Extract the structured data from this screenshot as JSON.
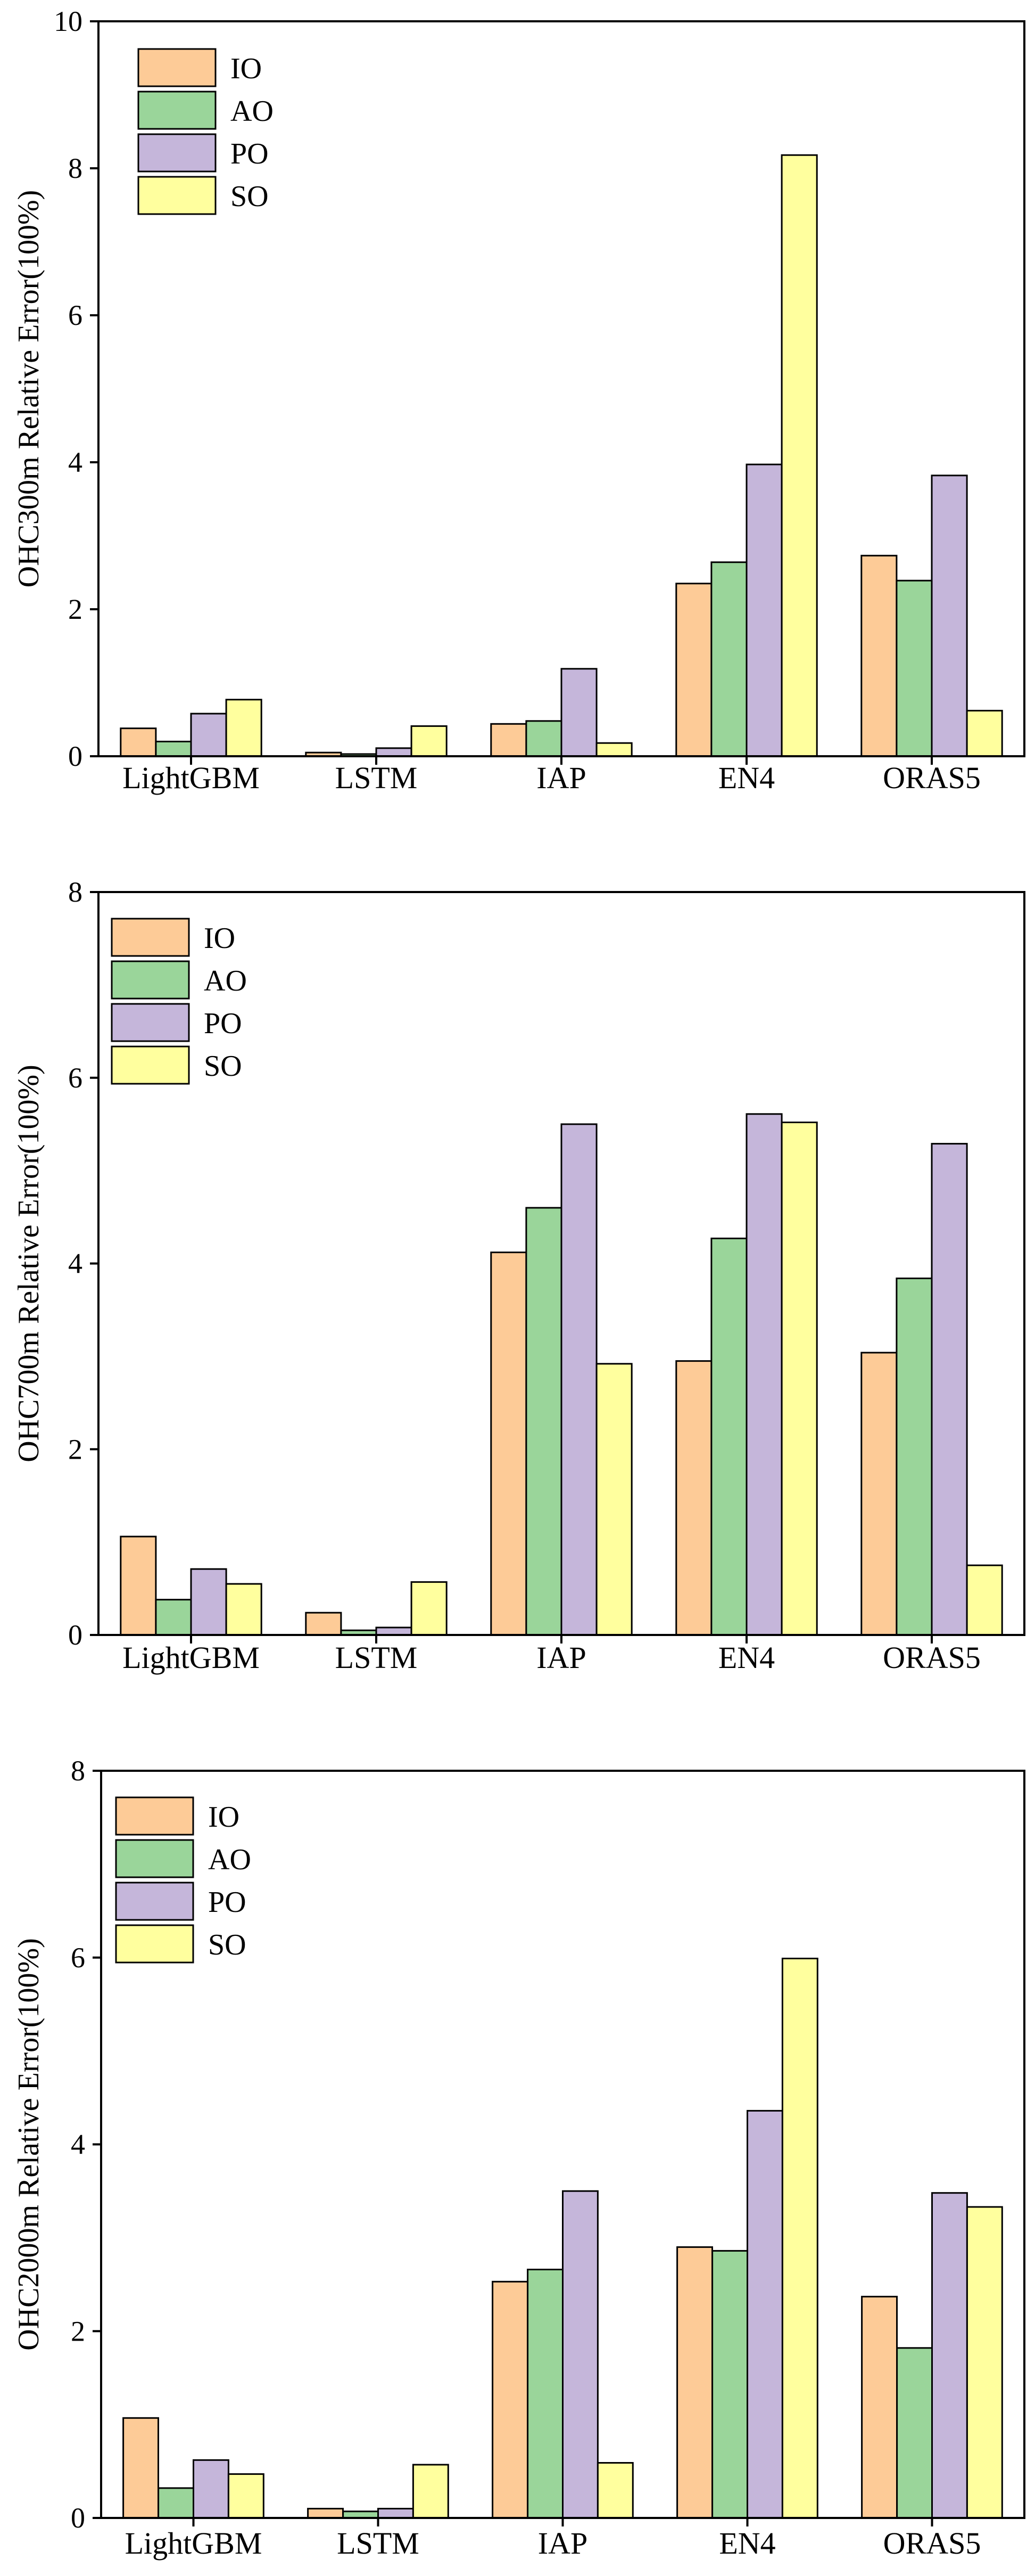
{
  "colors": {
    "IO": "#FDCB97",
    "AO": "#9AD59A",
    "PO": "#C5B6DA",
    "SO": "#FFFF9E",
    "outline": "#000000"
  },
  "chart_data": [
    {
      "type": "bar",
      "title": "",
      "xlabel": "",
      "ylabel": "OHC300m Relative Error(100%)",
      "ylim": [
        0,
        10
      ],
      "yticks": [
        "0",
        "2",
        "4",
        "6",
        "8",
        "10"
      ],
      "grid": false,
      "legend_position": "top-left",
      "categories": [
        "LightGBM",
        "LSTM",
        "IAP",
        "EN4",
        "ORAS5"
      ],
      "series": [
        {
          "name": "IO",
          "values": [
            0.38,
            0.05,
            0.44,
            2.35,
            2.73
          ]
        },
        {
          "name": "AO",
          "values": [
            0.2,
            0.03,
            0.48,
            2.64,
            2.39
          ]
        },
        {
          "name": "PO",
          "values": [
            0.58,
            0.11,
            1.19,
            3.97,
            3.82
          ]
        },
        {
          "name": "SO",
          "values": [
            0.77,
            0.41,
            0.18,
            8.18,
            0.62
          ]
        }
      ]
    },
    {
      "type": "bar",
      "title": "",
      "xlabel": "",
      "ylabel": "OHC700m Relative Error(100%)",
      "ylim": [
        0,
        8
      ],
      "yticks": [
        "0",
        "2",
        "4",
        "6",
        "8"
      ],
      "grid": false,
      "legend_position": "top-left",
      "categories": [
        "LightGBM",
        "LSTM",
        "IAP",
        "EN4",
        "ORAS5"
      ],
      "series": [
        {
          "name": "IO",
          "values": [
            1.06,
            0.24,
            4.12,
            2.95,
            3.04
          ]
        },
        {
          "name": "AO",
          "values": [
            0.38,
            0.05,
            4.6,
            4.27,
            3.84
          ]
        },
        {
          "name": "PO",
          "values": [
            0.71,
            0.08,
            5.5,
            5.61,
            5.29
          ]
        },
        {
          "name": "SO",
          "values": [
            0.55,
            0.57,
            2.92,
            5.52,
            0.75
          ]
        }
      ]
    },
    {
      "type": "bar",
      "title": "",
      "xlabel": "",
      "ylabel": "OHC2000m Relative Error(100%)",
      "ylim": [
        0,
        8
      ],
      "yticks": [
        "0",
        "2",
        "4",
        "6",
        "8"
      ],
      "grid": false,
      "legend_position": "top-left",
      "categories": [
        "LightGBM",
        "LSTM",
        "IAP",
        "EN4",
        "ORAS5"
      ],
      "series": [
        {
          "name": "IO",
          "values": [
            1.07,
            0.1,
            2.53,
            2.9,
            2.37
          ]
        },
        {
          "name": "AO",
          "values": [
            0.32,
            0.07,
            2.66,
            2.86,
            1.82
          ]
        },
        {
          "name": "PO",
          "values": [
            0.62,
            0.1,
            3.5,
            4.36,
            3.48
          ]
        },
        {
          "name": "SO",
          "values": [
            0.47,
            0.57,
            0.59,
            5.99,
            3.33
          ]
        }
      ]
    }
  ]
}
